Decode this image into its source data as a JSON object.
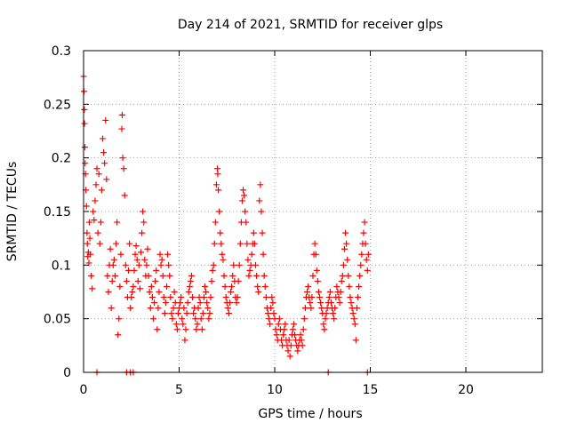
{
  "chart_data": {
    "type": "scatter",
    "title": "Day 214 of 2021, SRMTID for receiver glps",
    "xlabel": "GPS time / hours",
    "ylabel": "SRMTID / TECUs",
    "xlim": [
      0,
      24
    ],
    "ylim": [
      0,
      0.3
    ],
    "x_ticks": [
      0,
      5,
      10,
      15,
      20
    ],
    "x_tick_labels": [
      "0",
      "5",
      "10",
      "15",
      "20"
    ],
    "y_ticks": [
      0,
      0.05,
      0.1,
      0.15,
      0.2,
      0.25,
      0.3
    ],
    "y_tick_labels": [
      "0",
      "0.05",
      "0.1",
      "0.15",
      "0.2",
      "0.25",
      "0.3"
    ],
    "grid": true,
    "marker": "plus",
    "color": "#ff0000",
    "series": [
      {
        "points": [
          [
            0.0,
            0.276
          ],
          [
            0.02,
            0.262
          ],
          [
            0.04,
            0.245
          ],
          [
            0.05,
            0.232
          ],
          [
            0.07,
            0.21
          ],
          [
            0.08,
            0.195
          ],
          [
            0.1,
            0.185
          ],
          [
            0.12,
            0.17
          ],
          [
            0.15,
            0.155
          ],
          [
            0.18,
            0.13
          ],
          [
            0.2,
            0.12
          ],
          [
            0.22,
            0.108
          ],
          [
            0.25,
            0.112
          ],
          [
            0.28,
            0.102
          ],
          [
            0.3,
            0.14
          ],
          [
            0.33,
            0.125
          ],
          [
            0.35,
            0.11
          ],
          [
            0.4,
            0.09
          ],
          [
            0.45,
            0.078
          ],
          [
            0.5,
            0.15
          ],
          [
            0.55,
            0.142
          ],
          [
            0.6,
            0.16
          ],
          [
            0.65,
            0.175
          ],
          [
            0.7,
            0.19
          ],
          [
            0.75,
            0.13
          ],
          [
            0.8,
            0.185
          ],
          [
            0.85,
            0.12
          ],
          [
            0.9,
            0.14
          ],
          [
            0.95,
            0.17
          ],
          [
            1.0,
            0.218
          ],
          [
            1.05,
            0.205
          ],
          [
            1.1,
            0.195
          ],
          [
            1.15,
            0.235
          ],
          [
            1.2,
            0.18
          ],
          [
            1.25,
            0.09
          ],
          [
            1.3,
            0.075
          ],
          [
            1.35,
            0.1
          ],
          [
            1.4,
            0.115
          ],
          [
            1.45,
            0.06
          ],
          [
            1.5,
            0.085
          ],
          [
            1.55,
            0.1
          ],
          [
            1.6,
            0.105
          ],
          [
            1.65,
            0.09
          ],
          [
            1.7,
            0.12
          ],
          [
            1.75,
            0.14
          ],
          [
            1.8,
            0.035
          ],
          [
            1.85,
            0.05
          ],
          [
            1.9,
            0.08
          ],
          [
            1.95,
            0.11
          ],
          [
            2.0,
            0.227
          ],
          [
            2.02,
            0.24
          ],
          [
            2.05,
            0.2
          ],
          [
            2.1,
            0.19
          ],
          [
            2.15,
            0.165
          ],
          [
            2.2,
            0.1
          ],
          [
            2.25,
            0.085
          ],
          [
            2.3,
            0.07
          ],
          [
            2.35,
            0.095
          ],
          [
            2.4,
            0.12
          ],
          [
            2.45,
            0.06
          ],
          [
            2.5,
            0.07
          ],
          [
            2.55,
            0.075
          ],
          [
            2.6,
            0.08
          ],
          [
            2.65,
            0.095
          ],
          [
            2.7,
            0.11
          ],
          [
            2.75,
            0.118
          ],
          [
            2.8,
            0.105
          ],
          [
            2.85,
            0.085
          ],
          [
            2.9,
            0.1
          ],
          [
            2.95,
            0.078
          ],
          [
            3.0,
            0.112
          ],
          [
            3.05,
            0.13
          ],
          [
            3.1,
            0.15
          ],
          [
            3.15,
            0.14
          ],
          [
            3.2,
            0.105
          ],
          [
            3.25,
            0.09
          ],
          [
            3.3,
            0.1
          ],
          [
            3.35,
            0.115
          ],
          [
            3.4,
            0.09
          ],
          [
            3.45,
            0.075
          ],
          [
            3.5,
            0.06
          ],
          [
            3.55,
            0.08
          ],
          [
            3.6,
            0.07
          ],
          [
            3.65,
            0.05
          ],
          [
            3.7,
            0.065
          ],
          [
            3.75,
            0.085
          ],
          [
            3.8,
            0.095
          ],
          [
            3.85,
            0.04
          ],
          [
            3.9,
            0.06
          ],
          [
            3.95,
            0.075
          ],
          [
            4.0,
            0.11
          ],
          [
            4.05,
            0.1
          ],
          [
            4.1,
            0.105
          ],
          [
            4.15,
            0.09
          ],
          [
            4.2,
            0.07
          ],
          [
            4.25,
            0.055
          ],
          [
            4.3,
            0.065
          ],
          [
            4.35,
            0.08
          ],
          [
            4.4,
            0.11
          ],
          [
            4.45,
            0.1
          ],
          [
            4.5,
            0.09
          ],
          [
            4.55,
            0.07
          ],
          [
            4.6,
            0.055
          ],
          [
            4.65,
            0.05
          ],
          [
            4.7,
            0.06
          ],
          [
            4.75,
            0.075
          ],
          [
            4.8,
            0.065
          ],
          [
            4.85,
            0.045
          ],
          [
            4.9,
            0.04
          ],
          [
            4.95,
            0.055
          ],
          [
            5.0,
            0.06
          ],
          [
            5.05,
            0.065
          ],
          [
            5.1,
            0.07
          ],
          [
            5.15,
            0.05
          ],
          [
            5.2,
            0.045
          ],
          [
            5.25,
            0.06
          ],
          [
            5.3,
            0.03
          ],
          [
            5.35,
            0.04
          ],
          [
            5.4,
            0.055
          ],
          [
            5.45,
            0.065
          ],
          [
            5.5,
            0.075
          ],
          [
            5.55,
            0.08
          ],
          [
            5.6,
            0.085
          ],
          [
            5.65,
            0.09
          ],
          [
            5.7,
            0.07
          ],
          [
            5.75,
            0.055
          ],
          [
            5.8,
            0.06
          ],
          [
            5.85,
            0.05
          ],
          [
            5.9,
            0.04
          ],
          [
            5.95,
            0.045
          ],
          [
            6.0,
            0.06
          ],
          [
            6.05,
            0.07
          ],
          [
            6.1,
            0.065
          ],
          [
            6.15,
            0.05
          ],
          [
            6.2,
            0.04
          ],
          [
            6.25,
            0.055
          ],
          [
            6.3,
            0.07
          ],
          [
            6.35,
            0.08
          ],
          [
            6.4,
            0.075
          ],
          [
            6.45,
            0.065
          ],
          [
            6.5,
            0.06
          ],
          [
            6.55,
            0.05
          ],
          [
            6.6,
            0.055
          ],
          [
            6.65,
            0.07
          ],
          [
            6.7,
            0.085
          ],
          [
            6.75,
            0.095
          ],
          [
            6.8,
            0.1
          ],
          [
            6.85,
            0.12
          ],
          [
            6.9,
            0.14
          ],
          [
            6.95,
            0.175
          ],
          [
            7.0,
            0.19
          ],
          [
            7.02,
            0.185
          ],
          [
            7.05,
            0.17
          ],
          [
            7.1,
            0.15
          ],
          [
            7.15,
            0.13
          ],
          [
            7.2,
            0.12
          ],
          [
            7.25,
            0.11
          ],
          [
            7.3,
            0.105
          ],
          [
            7.35,
            0.09
          ],
          [
            7.4,
            0.08
          ],
          [
            7.45,
            0.07
          ],
          [
            7.5,
            0.065
          ],
          [
            7.55,
            0.06
          ],
          [
            7.6,
            0.055
          ],
          [
            7.65,
            0.065
          ],
          [
            7.7,
            0.075
          ],
          [
            7.75,
            0.08
          ],
          [
            7.8,
            0.09
          ],
          [
            7.85,
            0.1
          ],
          [
            7.9,
            0.085
          ],
          [
            7.95,
            0.07
          ],
          [
            8.0,
            0.065
          ],
          [
            8.05,
            0.07
          ],
          [
            8.1,
            0.085
          ],
          [
            8.15,
            0.1
          ],
          [
            8.2,
            0.12
          ],
          [
            8.25,
            0.14
          ],
          [
            8.3,
            0.16
          ],
          [
            8.35,
            0.17
          ],
          [
            8.4,
            0.165
          ],
          [
            8.45,
            0.15
          ],
          [
            8.5,
            0.14
          ],
          [
            8.55,
            0.12
          ],
          [
            8.6,
            0.105
          ],
          [
            8.65,
            0.09
          ],
          [
            8.7,
            0.095
          ],
          [
            8.75,
            0.1
          ],
          [
            8.8,
            0.11
          ],
          [
            8.85,
            0.12
          ],
          [
            8.9,
            0.13
          ],
          [
            8.95,
            0.12
          ],
          [
            9.0,
            0.1
          ],
          [
            9.05,
            0.09
          ],
          [
            9.1,
            0.08
          ],
          [
            9.15,
            0.075
          ],
          [
            9.2,
            0.16
          ],
          [
            9.25,
            0.175
          ],
          [
            9.3,
            0.15
          ],
          [
            9.35,
            0.13
          ],
          [
            9.4,
            0.11
          ],
          [
            9.45,
            0.09
          ],
          [
            9.5,
            0.08
          ],
          [
            9.55,
            0.07
          ],
          [
            9.6,
            0.06
          ],
          [
            9.65,
            0.055
          ],
          [
            9.7,
            0.05
          ],
          [
            9.75,
            0.045
          ],
          [
            9.8,
            0.06
          ],
          [
            9.85,
            0.07
          ],
          [
            9.9,
            0.065
          ],
          [
            9.95,
            0.055
          ],
          [
            10.0,
            0.05
          ],
          [
            10.05,
            0.04
          ],
          [
            10.1,
            0.035
          ],
          [
            10.15,
            0.03
          ],
          [
            10.2,
            0.045
          ],
          [
            10.25,
            0.05
          ],
          [
            10.3,
            0.04
          ],
          [
            10.35,
            0.03
          ],
          [
            10.4,
            0.025
          ],
          [
            10.45,
            0.035
          ],
          [
            10.5,
            0.04
          ],
          [
            10.55,
            0.045
          ],
          [
            10.6,
            0.03
          ],
          [
            10.65,
            0.025
          ],
          [
            10.7,
            0.02
          ],
          [
            10.75,
            0.03
          ],
          [
            10.8,
            0.015
          ],
          [
            10.85,
            0.025
          ],
          [
            10.9,
            0.035
          ],
          [
            10.95,
            0.04
          ],
          [
            11.0,
            0.045
          ],
          [
            11.05,
            0.035
          ],
          [
            11.1,
            0.03
          ],
          [
            11.15,
            0.025
          ],
          [
            11.2,
            0.02
          ],
          [
            11.25,
            0.025
          ],
          [
            11.3,
            0.03
          ],
          [
            11.35,
            0.035
          ],
          [
            11.4,
            0.03
          ],
          [
            11.45,
            0.025
          ],
          [
            11.5,
            0.04
          ],
          [
            11.55,
            0.05
          ],
          [
            11.6,
            0.06
          ],
          [
            11.65,
            0.07
          ],
          [
            11.7,
            0.075
          ],
          [
            11.75,
            0.08
          ],
          [
            11.8,
            0.07
          ],
          [
            11.85,
            0.065
          ],
          [
            11.9,
            0.06
          ],
          [
            11.95,
            0.07
          ],
          [
            12.0,
            0.09
          ],
          [
            12.05,
            0.11
          ],
          [
            12.1,
            0.12
          ],
          [
            12.15,
            0.11
          ],
          [
            12.2,
            0.095
          ],
          [
            12.25,
            0.085
          ],
          [
            12.3,
            0.075
          ],
          [
            12.35,
            0.07
          ],
          [
            12.4,
            0.065
          ],
          [
            12.45,
            0.06
          ],
          [
            12.5,
            0.055
          ],
          [
            12.55,
            0.045
          ],
          [
            12.6,
            0.04
          ],
          [
            12.65,
            0.05
          ],
          [
            12.7,
            0.055
          ],
          [
            12.75,
            0.06
          ],
          [
            12.8,
            0.065
          ],
          [
            12.85,
            0.07
          ],
          [
            12.9,
            0.075
          ],
          [
            12.95,
            0.065
          ],
          [
            13.0,
            0.06
          ],
          [
            13.05,
            0.055
          ],
          [
            13.1,
            0.05
          ],
          [
            13.15,
            0.06
          ],
          [
            13.2,
            0.07
          ],
          [
            13.25,
            0.08
          ],
          [
            13.3,
            0.075
          ],
          [
            13.35,
            0.07
          ],
          [
            13.4,
            0.065
          ],
          [
            13.45,
            0.075
          ],
          [
            13.5,
            0.085
          ],
          [
            13.55,
            0.09
          ],
          [
            13.6,
            0.1
          ],
          [
            13.65,
            0.115
          ],
          [
            13.7,
            0.13
          ],
          [
            13.75,
            0.12
          ],
          [
            13.8,
            0.105
          ],
          [
            13.85,
            0.09
          ],
          [
            13.9,
            0.08
          ],
          [
            13.95,
            0.07
          ],
          [
            14.0,
            0.065
          ],
          [
            14.05,
            0.06
          ],
          [
            14.1,
            0.055
          ],
          [
            14.15,
            0.05
          ],
          [
            14.2,
            0.045
          ],
          [
            14.25,
            0.03
          ],
          [
            14.3,
            0.06
          ],
          [
            14.35,
            0.07
          ],
          [
            14.4,
            0.08
          ],
          [
            14.45,
            0.09
          ],
          [
            14.5,
            0.1
          ],
          [
            14.55,
            0.11
          ],
          [
            14.6,
            0.12
          ],
          [
            14.65,
            0.13
          ],
          [
            14.7,
            0.14
          ],
          [
            14.75,
            0.12
          ],
          [
            14.8,
            0.105
          ],
          [
            14.85,
            0.095
          ],
          [
            14.9,
            0.11
          ]
        ]
      },
      {
        "points": [
          [
            0.7,
            0
          ],
          [
            2.25,
            0
          ],
          [
            2.45,
            0
          ],
          [
            2.6,
            0
          ],
          [
            12.8,
            0
          ],
          [
            14.85,
            0
          ]
        ]
      }
    ]
  }
}
